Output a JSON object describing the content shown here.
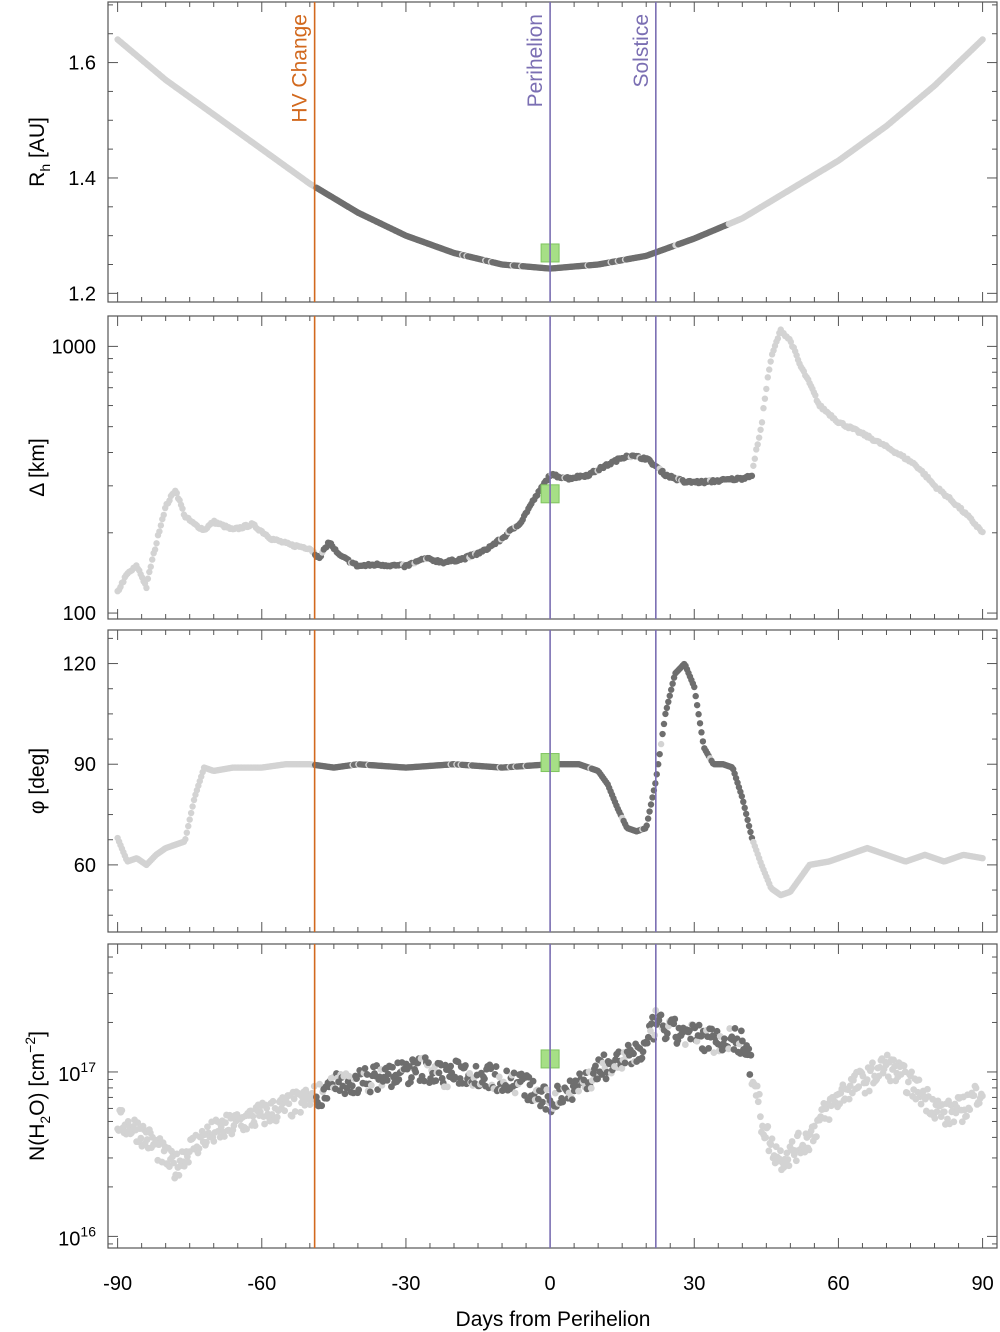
{
  "figure": {
    "xlabel": "Days from Perihelion",
    "x_ticks": [
      -90,
      -60,
      -30,
      0,
      30,
      60,
      90
    ],
    "x_tick_labels": [
      "-90",
      "-60",
      "-30",
      "0",
      "30",
      "60",
      "90"
    ],
    "xlim": [
      -92,
      93
    ]
  },
  "colors": {
    "light_points": "#d3d3d3",
    "dark_points": "#6e6e6e",
    "hv_line": "#d2691e",
    "event_line": "#7b6fb3",
    "marker": "#a6df86",
    "marker_edge": "#7fc45f"
  },
  "events": [
    {
      "label": "HV Change",
      "x": -49,
      "color": "#d2691e"
    },
    {
      "label": "Perihelion",
      "x": 0,
      "color": "#7b6fb3"
    },
    {
      "label": "Solstice",
      "x": 22,
      "color": "#7b6fb3"
    }
  ],
  "chart_data": [
    {
      "type": "scatter",
      "id": "rh",
      "ylabel_main": "R",
      "ylabel_sub": "h",
      "ylabel_tail": " [AU]",
      "yscale": "linear",
      "ylim": [
        1.185,
        1.705
      ],
      "y_ticks": [
        1.2,
        1.4,
        1.6
      ],
      "y_tick_labels": [
        "1.2",
        "1.4",
        "1.6"
      ],
      "marker_point": {
        "x": 0,
        "y": 1.27
      },
      "dark_range": [
        -49,
        37
      ],
      "series": [
        {
          "x": [
            -90,
            -80,
            -70,
            -60,
            -50,
            -40,
            -30,
            -20,
            -10,
            0,
            10,
            20,
            30,
            40,
            50,
            60,
            70,
            80,
            90
          ],
          "y": [
            1.64,
            1.57,
            1.51,
            1.45,
            1.39,
            1.34,
            1.3,
            1.27,
            1.25,
            1.243,
            1.25,
            1.265,
            1.295,
            1.33,
            1.38,
            1.43,
            1.49,
            1.56,
            1.64
          ]
        }
      ]
    },
    {
      "type": "scatter",
      "id": "delta",
      "ylabel_main": "Δ [km]",
      "yscale": "log",
      "ylim": [
        95,
        1300
      ],
      "y_ticks": [
        100,
        1000
      ],
      "y_tick_labels": [
        "100",
        "1000"
      ],
      "marker_point": {
        "x": 0,
        "y": 280
      },
      "dark_range": [
        -49,
        42
      ],
      "series": [
        {
          "x": [
            -90,
            -88,
            -86,
            -84,
            -82,
            -80,
            -78,
            -76,
            -74,
            -72,
            -70,
            -66,
            -62,
            -58,
            -54,
            -50,
            -48,
            -46,
            -44,
            -40,
            -36,
            -30,
            -26,
            -22,
            -18,
            -14,
            -10,
            -6,
            -2,
            0,
            4,
            8,
            12,
            16,
            20,
            24,
            28,
            32,
            36,
            40,
            42,
            44,
            46,
            48,
            50,
            52,
            56,
            60,
            64,
            68,
            72,
            76,
            80,
            84,
            88,
            90
          ],
          "y": [
            120,
            140,
            150,
            125,
            180,
            250,
            290,
            230,
            215,
            205,
            220,
            205,
            215,
            190,
            180,
            175,
            160,
            185,
            165,
            150,
            152,
            150,
            160,
            155,
            160,
            170,
            190,
            220,
            290,
            330,
            320,
            330,
            360,
            390,
            380,
            330,
            310,
            310,
            315,
            320,
            330,
            500,
            900,
            1150,
            1050,
            850,
            600,
            520,
            480,
            440,
            400,
            360,
            300,
            260,
            220,
            200
          ]
        }
      ]
    },
    {
      "type": "scatter",
      "id": "phi",
      "ylabel_main": "φ [deg]",
      "yscale": "linear",
      "ylim": [
        40,
        130
      ],
      "y_ticks": [
        60,
        90,
        120
      ],
      "y_tick_labels": [
        "60",
        "90",
        "120"
      ],
      "marker_point": {
        "x": 0,
        "y": 90.5
      },
      "dark_range": [
        -49,
        42
      ],
      "series": [
        {
          "x": [
            -90,
            -88,
            -86,
            -84,
            -82,
            -80,
            -76,
            -74,
            -72,
            -70,
            -66,
            -60,
            -55,
            -50,
            -45,
            -40,
            -30,
            -20,
            -10,
            0,
            6,
            10,
            12,
            14,
            16,
            18,
            20,
            22,
            24,
            26,
            28,
            30,
            32,
            34,
            36,
            38,
            40,
            42,
            44,
            46,
            48,
            50,
            54,
            58,
            62,
            66,
            70,
            74,
            78,
            82,
            86,
            90
          ],
          "y": [
            68,
            61,
            62,
            60,
            63,
            65,
            67,
            80,
            89,
            88,
            89,
            89,
            90,
            90,
            89,
            90,
            89,
            90,
            89,
            90,
            90,
            88,
            84,
            77,
            71,
            70,
            71,
            85,
            105,
            117,
            120,
            113,
            95,
            90,
            90,
            89,
            80,
            68,
            60,
            53,
            51,
            52,
            60,
            61,
            63,
            65,
            63,
            61,
            63,
            61,
            63,
            62
          ]
        }
      ]
    },
    {
      "type": "scatter",
      "id": "nh2o",
      "ylabel_main": "N(H",
      "ylabel_sub": "2",
      "ylabel_mid": "O) [cm",
      "ylabel_sup": "−2",
      "ylabel_tail": "]",
      "yscale": "log",
      "ylim": [
        8500000000000000.0,
        6e+17
      ],
      "y_ticks": [
        1e+16,
        1e+17
      ],
      "y_tick_base": "10",
      "y_tick_exps": [
        "16",
        "17"
      ],
      "marker_point": {
        "x": 0,
        "y": 1.2e+17
      },
      "dark_range": [
        -49,
        42
      ],
      "series": [
        {
          "x": [
            -90,
            -86,
            -82,
            -80,
            -78,
            -76,
            -72,
            -68,
            -64,
            -60,
            -56,
            -52,
            -49,
            -46,
            -42,
            -38,
            -34,
            -30,
            -26,
            -22,
            -18,
            -14,
            -10,
            -6,
            -2,
            0,
            4,
            8,
            12,
            16,
            20,
            22,
            24,
            28,
            32,
            36,
            38,
            40,
            42,
            44,
            46,
            48,
            50,
            54,
            58,
            62,
            66,
            70,
            74,
            78,
            82,
            86,
            90
          ],
          "y": [
            5e+16,
            4.5e+16,
            3.5e+16,
            3e+16,
            2.6e+16,
            3.2e+16,
            4e+16,
            4.5e+16,
            5e+16,
            5.5e+16,
            6e+16,
            6.5e+16,
            7e+16,
            8e+16,
            8.5e+16,
            9e+16,
            9.5e+16,
            1e+17,
            1.05e+17,
            9.5e+16,
            1e+17,
            9.5e+16,
            9e+16,
            8.5e+16,
            7e+16,
            6.5e+16,
            8e+16,
            9e+16,
            1.1e+17,
            1.2e+17,
            1.4e+17,
            2e+17,
            1.8e+17,
            1.7e+17,
            1.6e+17,
            1.55e+17,
            1.6e+17,
            1.5e+17,
            1e+17,
            5e+16,
            3.5e+16,
            3e+16,
            3.2e+16,
            4e+16,
            6e+16,
            8e+16,
            9e+16,
            1.1e+17,
            9e+16,
            7e+16,
            5.5e+16,
            6e+16,
            8e+16
          ]
        }
      ]
    }
  ]
}
